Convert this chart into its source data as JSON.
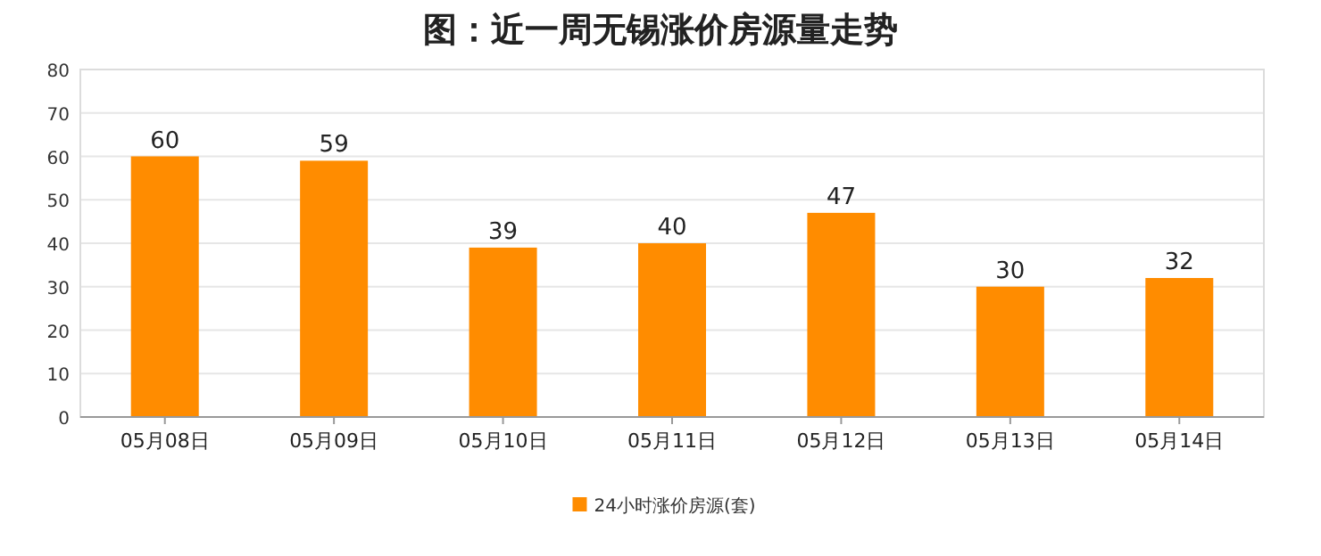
{
  "chart_data": {
    "type": "bar",
    "title": "图：近一周无锡涨价房源量走势",
    "categories": [
      "05月08日",
      "05月09日",
      "05月10日",
      "05月11日",
      "05月12日",
      "05月13日",
      "05月14日"
    ],
    "series": [
      {
        "name": "24小时涨价房源(套)",
        "color": "#ff8c00",
        "values": [
          60,
          59,
          39,
          40,
          47,
          30,
          32
        ]
      }
    ],
    "ylim": [
      0,
      80
    ],
    "yticks": [
      0,
      10,
      20,
      30,
      40,
      50,
      60,
      70,
      80
    ],
    "grid": "y",
    "data_labels": true,
    "legend": "bottom"
  }
}
